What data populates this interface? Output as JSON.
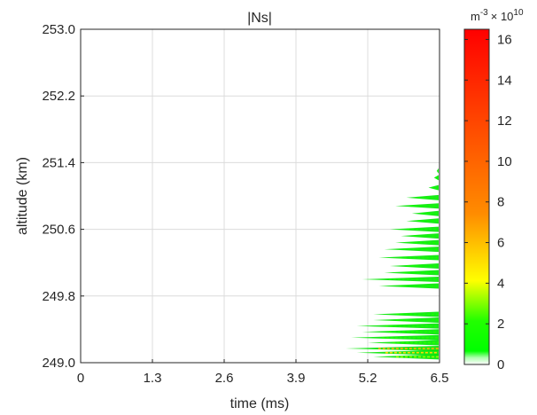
{
  "chart_data": {
    "type": "heatmap",
    "title": "|Ns|",
    "xlabel": "time (ms)",
    "ylabel": "altitude  (km)",
    "xlim": [
      0,
      6.5
    ],
    "ylim": [
      249.0,
      253.0
    ],
    "xticks": [
      "0",
      "1.3",
      "2.6",
      "3.9",
      "5.2",
      "6.5"
    ],
    "yticks": [
      "249.0",
      "249.8",
      "250.6",
      "251.4",
      "252.2",
      "253.0"
    ],
    "grid": true,
    "colorbar": {
      "unit_base": "m",
      "unit_exp": "-3",
      "unit_scale": "× 10",
      "unit_scale_exp": "10",
      "range": [
        0,
        16.5
      ],
      "ticks": [
        "0",
        "2",
        "4",
        "6",
        "8",
        "10",
        "12",
        "14",
        "16"
      ],
      "colors": [
        "#ffffff",
        "#00ff00",
        "#ffff00",
        "#ff8c00",
        "#ff0000"
      ]
    },
    "streaks": [
      {
        "altitude": 249.07,
        "t_start": 5.3,
        "value": 3.0
      },
      {
        "altitude": 249.12,
        "t_start": 5.0,
        "value": 5.0
      },
      {
        "altitude": 249.17,
        "t_start": 4.8,
        "value": 6.0
      },
      {
        "altitude": 249.24,
        "t_start": 5.2,
        "value": 2.0
      },
      {
        "altitude": 249.3,
        "t_start": 4.9,
        "value": 1.8
      },
      {
        "altitude": 249.37,
        "t_start": 5.1,
        "value": 1.5
      },
      {
        "altitude": 249.44,
        "t_start": 5.0,
        "value": 1.4
      },
      {
        "altitude": 249.51,
        "t_start": 5.3,
        "value": 1.2
      },
      {
        "altitude": 249.58,
        "t_start": 5.3,
        "value": 1.3
      },
      {
        "altitude": 249.92,
        "t_start": 5.4,
        "value": 1.0
      },
      {
        "altitude": 250.0,
        "t_start": 5.1,
        "value": 1.2
      },
      {
        "altitude": 250.08,
        "t_start": 5.5,
        "value": 1.0
      },
      {
        "altitude": 250.16,
        "t_start": 5.6,
        "value": 1.1
      },
      {
        "altitude": 250.26,
        "t_start": 5.4,
        "value": 1.3
      },
      {
        "altitude": 250.36,
        "t_start": 5.5,
        "value": 1.0
      },
      {
        "altitude": 250.44,
        "t_start": 5.7,
        "value": 1.2
      },
      {
        "altitude": 250.52,
        "t_start": 5.8,
        "value": 1.1
      },
      {
        "altitude": 250.6,
        "t_start": 5.6,
        "value": 1.2
      },
      {
        "altitude": 250.7,
        "t_start": 5.9,
        "value": 1.0
      },
      {
        "altitude": 250.79,
        "t_start": 6.0,
        "value": 1.1
      },
      {
        "altitude": 250.88,
        "t_start": 5.7,
        "value": 1.0
      },
      {
        "altitude": 250.98,
        "t_start": 5.9,
        "value": 1.2
      },
      {
        "altitude": 251.1,
        "t_start": 6.3,
        "value": 0.9
      },
      {
        "altitude": 251.22,
        "t_start": 6.4,
        "value": 0.9
      },
      {
        "altitude": 251.3,
        "t_start": 6.45,
        "value": 0.9
      }
    ]
  }
}
